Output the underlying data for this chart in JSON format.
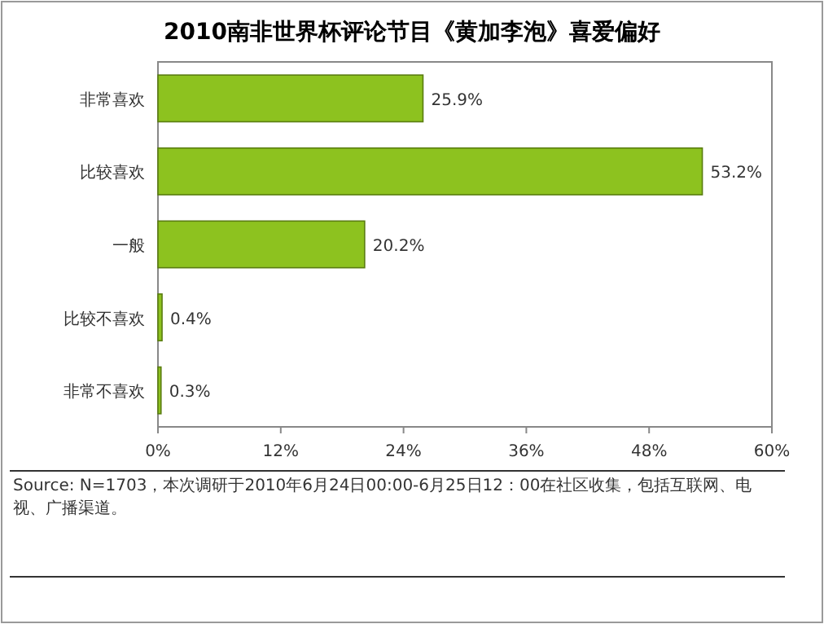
{
  "chart_data": {
    "type": "bar",
    "orientation": "horizontal",
    "title": "2010南非世界杯评论节目《黄加李泡》喜爱偏好",
    "categories": [
      "非常喜欢",
      "比较喜欢",
      "一般",
      "比较不喜欢",
      "非常不喜欢"
    ],
    "values": [
      25.9,
      53.2,
      20.2,
      0.4,
      0.3
    ],
    "value_labels": [
      "25.9%",
      "53.2%",
      "20.2%",
      "0.4%",
      "0.3%"
    ],
    "color": "#8dc21f",
    "xlim": [
      0,
      60
    ],
    "xticks": [
      {
        "value": 0,
        "label": "0%"
      },
      {
        "value": 12,
        "label": "12%"
      },
      {
        "value": 24,
        "label": "24%"
      },
      {
        "value": 36,
        "label": "36%"
      },
      {
        "value": 48,
        "label": "48%"
      },
      {
        "value": 60,
        "label": "60%"
      }
    ],
    "grid": false,
    "annotations": [
      "Source: N=1703，本次调研于2010年6月24日00:00-6月25日12：00在社区收集，包括互联网、电视、广播渠道。"
    ]
  }
}
